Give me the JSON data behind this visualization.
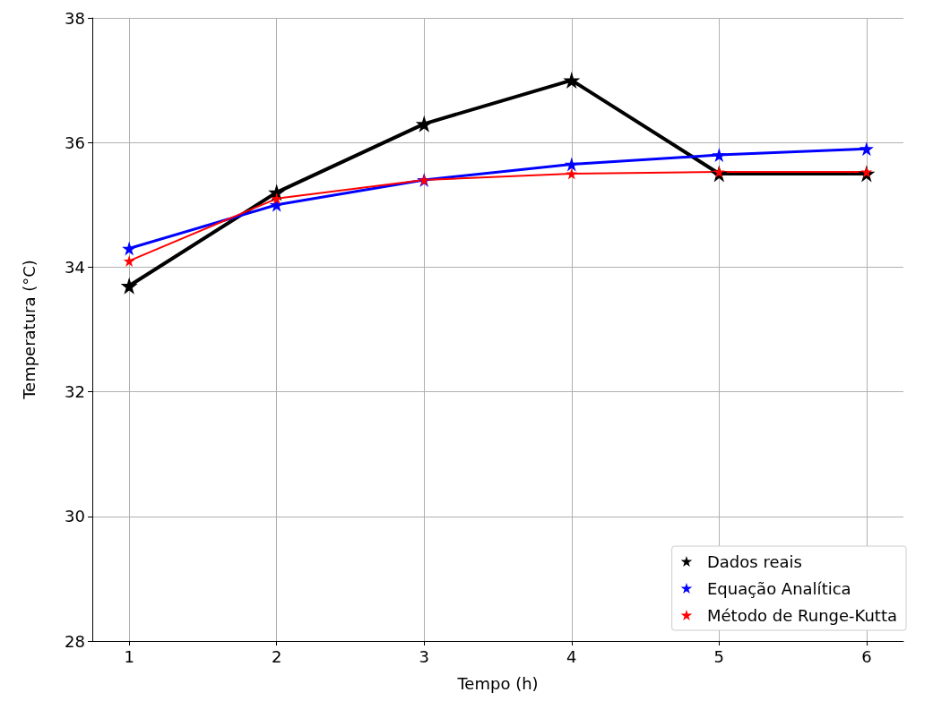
{
  "chart_data": {
    "type": "line",
    "xlabel": "Tempo (h)",
    "ylabel": "Temperatura (°C)",
    "x": [
      1,
      2,
      3,
      4,
      5,
      6
    ],
    "xlim": [
      0.75,
      6.25
    ],
    "xticks": [
      1,
      2,
      3,
      4,
      5,
      6
    ],
    "ylim": [
      28,
      38
    ],
    "yticks": [
      28,
      30,
      32,
      34,
      36,
      38
    ],
    "grid": true,
    "legend": "bottom right",
    "marker": "star",
    "line_style": "solid",
    "series": [
      {
        "name": "Dados reais",
        "color": "#000000",
        "values": [
          33.7,
          35.2,
          36.3,
          37.0,
          35.5,
          35.5
        ]
      },
      {
        "name": "Equação Analítica",
        "color": "#0000ff",
        "values": [
          34.3,
          35.0,
          35.4,
          35.65,
          35.8,
          35.9
        ]
      },
      {
        "name": "Método de Runge-Kutta",
        "color": "#ff0000",
        "values": [
          34.1,
          35.1,
          35.4,
          35.5,
          35.53,
          35.53
        ]
      }
    ]
  }
}
